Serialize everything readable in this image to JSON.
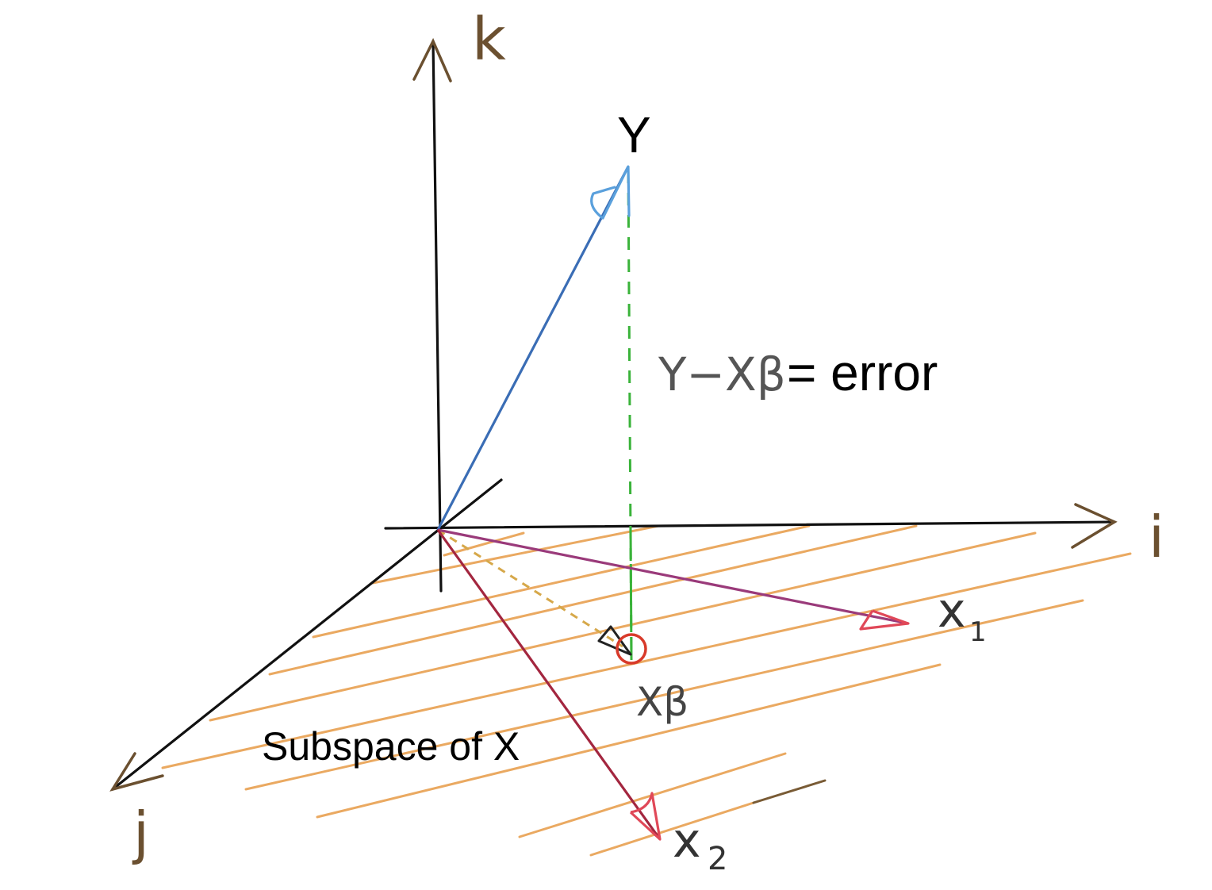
{
  "diagram": {
    "title_hidden": "",
    "axes": {
      "k": "k",
      "i": "i",
      "j": "j"
    },
    "vectors": {
      "y": "Y",
      "x1": "x",
      "x1_sub": "1",
      "x2": "x",
      "x2_sub": "2",
      "projection": "Xβ"
    },
    "error_label": {
      "expr": "Y−Xβ",
      "text": "= error"
    },
    "subspace_label": "Subspace of X",
    "colors": {
      "axis": "#111111",
      "axis_hand": "#6b5030",
      "y_vector": "#3a6db5",
      "y_arrowhead": "#5aa0dc",
      "x1_vector": "#9a3a7a",
      "x2_vector": "#a3263f",
      "arrowhead_red": "#e04858",
      "error_line": "#3ab33a",
      "projection_line": "#d6a84a",
      "hatch": "#e8a050",
      "projection_point": "#d83a2a",
      "handwriting": "#555555"
    }
  }
}
